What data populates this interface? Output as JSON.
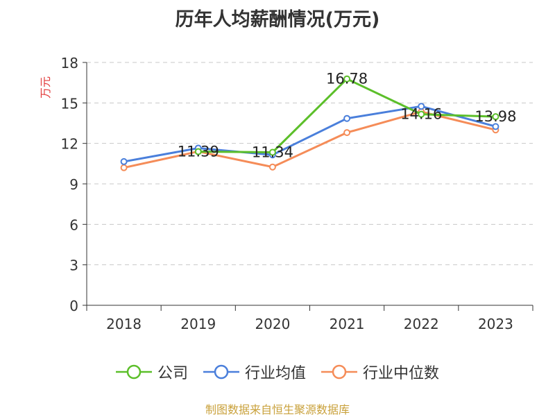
{
  "chart_data": {
    "type": "line",
    "title": "历年人均薪酬情况(万元)",
    "ylabel": "万元",
    "categories": [
      "2018",
      "2019",
      "2020",
      "2021",
      "2022",
      "2023"
    ],
    "ylim": [
      0,
      18
    ],
    "yticks": [
      0,
      3,
      6,
      9,
      12,
      15,
      18
    ],
    "grid": true,
    "legend": "bottom",
    "series": [
      {
        "name": "公司",
        "color": "#5cbf2a",
        "values": [
          null,
          11.39,
          11.34,
          16.78,
          14.16,
          13.98
        ],
        "labels": [
          "",
          "11.39",
          "11.34",
          "16.78",
          "14.16",
          "13.98"
        ]
      },
      {
        "name": "行业均值",
        "color": "#4a7fdb",
        "values": [
          10.65,
          11.65,
          11.15,
          13.85,
          14.75,
          13.25
        ]
      },
      {
        "name": "行业中位数",
        "color": "#f58c58",
        "values": [
          10.2,
          11.4,
          10.25,
          12.8,
          14.35,
          13.0
        ]
      }
    ]
  },
  "source": "制图数据来自恒生聚源数据库"
}
